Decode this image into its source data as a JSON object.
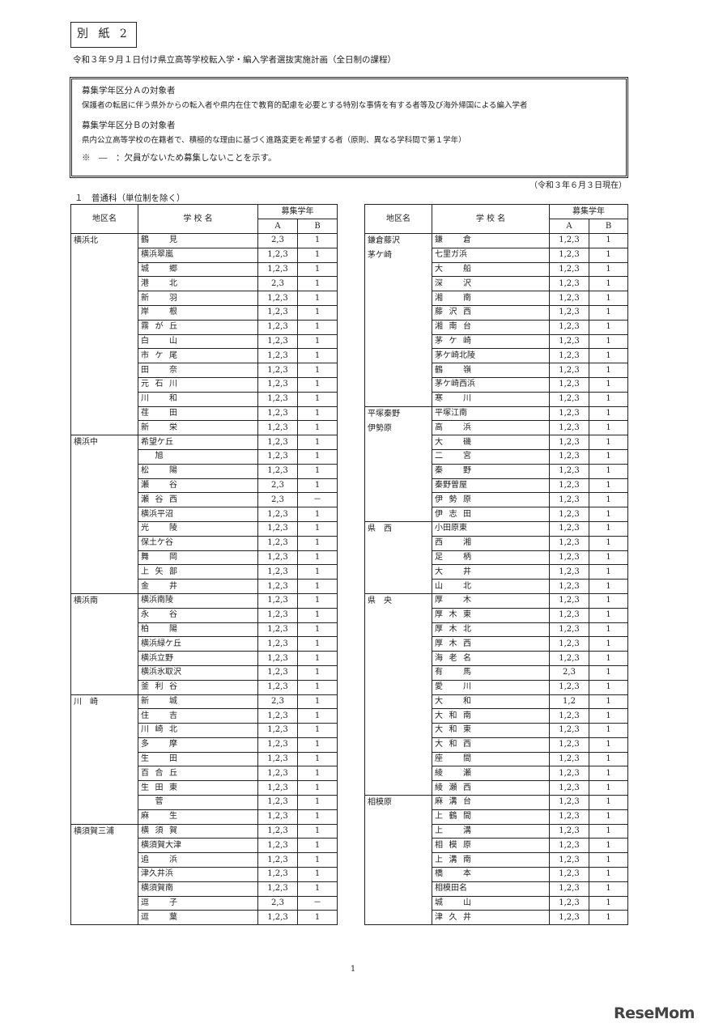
{
  "header": {
    "attachment_label": "別 紙 2",
    "subtitle": "令和３年９月１日付け県立高等学校転入学・編入学者選抜実施計画（全日制の課程）"
  },
  "info": {
    "a_heading": "募集学年区分Ａの対象者",
    "a_text": "保護者の転居に伴う県外からの転入者や県内在住で教育的配慮を必要とする特別な事情を有する者等及び海外帰国による編入学者",
    "b_heading": "募集学年区分Ｂの対象者",
    "b_text": "県内公立高等学校の在籍者で、積極的な理由に基づく進路変更を希望する者（原則、異なる学科間で第１学年）",
    "note": "※　―　：欠員がないため募集しないことを示す。"
  },
  "as_of": "（令和３年６月３日現在）",
  "section_title": "１　普通科（単位制を除く）",
  "table_headers": {
    "district": "地区名",
    "school": "学 校 名",
    "grade": "募集学年",
    "a": "A",
    "b": "B"
  },
  "tables": [
    {
      "groups": [
        {
          "district": [
            "横浜北"
          ],
          "schools": [
            [
              "鶴見",
              "2,3",
              "1"
            ],
            [
              "横浜翠嵐",
              "1,2,3",
              "1"
            ],
            [
              "城郷",
              "1,2,3",
              "1"
            ],
            [
              "港北",
              "2,3",
              "1"
            ],
            [
              "新羽",
              "1,2,3",
              "1"
            ],
            [
              "岸根",
              "1,2,3",
              "1"
            ],
            [
              "霧が丘",
              "1,2,3",
              "1"
            ],
            [
              "白山",
              "1,2,3",
              "1"
            ],
            [
              "市ケ尾",
              "1,2,3",
              "1"
            ],
            [
              "田奈",
              "1,2,3",
              "1"
            ],
            [
              "元石川",
              "1,2,3",
              "1"
            ],
            [
              "川和",
              "1,2,3",
              "1"
            ],
            [
              "荏田",
              "1,2,3",
              "1"
            ],
            [
              "新栄",
              "1,2,3",
              "1"
            ]
          ]
        },
        {
          "district": [
            "横浜中"
          ],
          "schools": [
            [
              "希望ケ丘",
              "1,2,3",
              "1"
            ],
            [
              "旭",
              "1,2,3",
              "1"
            ],
            [
              "松陽",
              "1,2,3",
              "1"
            ],
            [
              "瀬谷",
              "2,3",
              "1"
            ],
            [
              "瀬谷西",
              "2,3",
              "－"
            ],
            [
              "横浜平沼",
              "1,2,3",
              "1"
            ],
            [
              "光陵",
              "1,2,3",
              "1"
            ],
            [
              "保土ケ谷",
              "1,2,3",
              "1"
            ],
            [
              "舞岡",
              "1,2,3",
              "1"
            ],
            [
              "上矢部",
              "1,2,3",
              "1"
            ],
            [
              "金井",
              "1,2,3",
              "1"
            ]
          ]
        },
        {
          "district": [
            "横浜南"
          ],
          "schools": [
            [
              "横浜南陵",
              "1,2,3",
              "1"
            ],
            [
              "永谷",
              "1,2,3",
              "1"
            ],
            [
              "柏陽",
              "1,2,3",
              "1"
            ],
            [
              "横浜緑ケ丘",
              "1,2,3",
              "1"
            ],
            [
              "横浜立野",
              "1,2,3",
              "1"
            ],
            [
              "横浜氷取沢",
              "1,2,3",
              "1"
            ],
            [
              "釜利谷",
              "1,2,3",
              "1"
            ]
          ]
        },
        {
          "district": [
            "川　崎"
          ],
          "schools": [
            [
              "新城",
              "2,3",
              "1"
            ],
            [
              "住吉",
              "1,2,3",
              "1"
            ],
            [
              "川崎北",
              "1,2,3",
              "1"
            ],
            [
              "多摩",
              "1,2,3",
              "1"
            ],
            [
              "生田",
              "1,2,3",
              "1"
            ],
            [
              "百合丘",
              "1,2,3",
              "1"
            ],
            [
              "生田東",
              "1,2,3",
              "1"
            ],
            [
              "菅",
              "1,2,3",
              "1"
            ],
            [
              "麻生",
              "1,2,3",
              "1"
            ]
          ]
        },
        {
          "district": [
            "横須賀三浦"
          ],
          "schools": [
            [
              "横須賀",
              "1,2,3",
              "1"
            ],
            [
              "横須賀大津",
              "1,2,3",
              "1"
            ],
            [
              "追浜",
              "1,2,3",
              "1"
            ],
            [
              "津久井浜",
              "1,2,3",
              "1"
            ],
            [
              "横須賀南",
              "1,2,3",
              "1"
            ],
            [
              "逗子",
              "2,3",
              "－"
            ],
            [
              "逗葉",
              "1,2,3",
              "1"
            ]
          ]
        }
      ]
    },
    {
      "groups": [
        {
          "district": [
            "鎌倉藤沢",
            "茅ケ崎"
          ],
          "schools": [
            [
              "鎌倉",
              "1,2,3",
              "1"
            ],
            [
              "七里ガ浜",
              "1,2,3",
              "1"
            ],
            [
              "大船",
              "1,2,3",
              "1"
            ],
            [
              "深沢",
              "1,2,3",
              "1"
            ],
            [
              "湘南",
              "1,2,3",
              "1"
            ],
            [
              "藤沢西",
              "1,2,3",
              "1"
            ],
            [
              "湘南台",
              "1,2,3",
              "1"
            ],
            [
              "茅ケ崎",
              "1,2,3",
              "1"
            ],
            [
              "茅ケ崎北陵",
              "1,2,3",
              "1"
            ],
            [
              "鶴嶺",
              "1,2,3",
              "1"
            ],
            [
              "茅ケ崎西浜",
              "1,2,3",
              "1"
            ],
            [
              "寒川",
              "1,2,3",
              "1"
            ]
          ]
        },
        {
          "district": [
            "平塚秦野",
            "伊勢原"
          ],
          "schools": [
            [
              "平塚江南",
              "1,2,3",
              "1"
            ],
            [
              "高浜",
              "1,2,3",
              "1"
            ],
            [
              "大磯",
              "1,2,3",
              "1"
            ],
            [
              "二宮",
              "1,2,3",
              "1"
            ],
            [
              "秦野",
              "1,2,3",
              "1"
            ],
            [
              "秦野曽屋",
              "1,2,3",
              "1"
            ],
            [
              "伊勢原",
              "1,2,3",
              "1"
            ],
            [
              "伊志田",
              "1,2,3",
              "1"
            ]
          ]
        },
        {
          "district": [
            "県　西"
          ],
          "schools": [
            [
              "小田原東",
              "1,2,3",
              "1"
            ],
            [
              "西湘",
              "1,2,3",
              "1"
            ],
            [
              "足柄",
              "1,2,3",
              "1"
            ],
            [
              "大井",
              "1,2,3",
              "1"
            ],
            [
              "山北",
              "1,2,3",
              "1"
            ]
          ]
        },
        {
          "district": [
            "県　央"
          ],
          "schools": [
            [
              "厚木",
              "1,2,3",
              "1"
            ],
            [
              "厚木東",
              "1,2,3",
              "1"
            ],
            [
              "厚木北",
              "1,2,3",
              "1"
            ],
            [
              "厚木西",
              "1,2,3",
              "1"
            ],
            [
              "海老名",
              "1,2,3",
              "1"
            ],
            [
              "有馬",
              "2,3",
              "1"
            ],
            [
              "愛川",
              "1,2,3",
              "1"
            ],
            [
              "大和",
              "1,2",
              "1"
            ],
            [
              "大和南",
              "1,2,3",
              "1"
            ],
            [
              "大和東",
              "1,2,3",
              "1"
            ],
            [
              "大和西",
              "1,2,3",
              "1"
            ],
            [
              "座間",
              "1,2,3",
              "1"
            ],
            [
              "綾瀬",
              "1,2,3",
              "1"
            ],
            [
              "綾瀬西",
              "1,2,3",
              "1"
            ]
          ]
        },
        {
          "district": [
            "相模原"
          ],
          "schools": [
            [
              "麻溝台",
              "1,2,3",
              "1"
            ],
            [
              "上鶴間",
              "1,2,3",
              "1"
            ],
            [
              "上溝",
              "1,2,3",
              "1"
            ],
            [
              "相模原",
              "1,2,3",
              "1"
            ],
            [
              "上溝南",
              "1,2,3",
              "1"
            ],
            [
              "橋本",
              "1,2,3",
              "1"
            ],
            [
              "相模田名",
              "1,2,3",
              "1"
            ],
            [
              "城山",
              "1,2,3",
              "1"
            ],
            [
              "津久井",
              "1,2,3",
              "1"
            ]
          ]
        }
      ]
    }
  ],
  "page_number": "1",
  "watermark": "ReseMom"
}
